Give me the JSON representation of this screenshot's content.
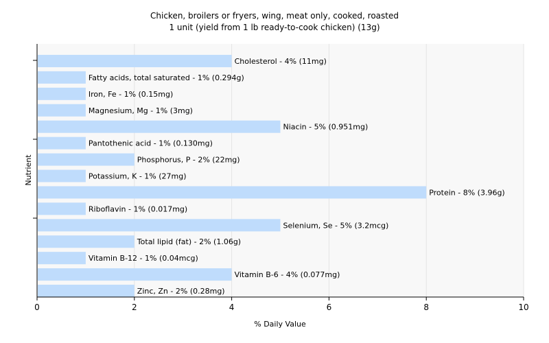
{
  "chart_data": {
    "type": "bar",
    "orientation": "horizontal",
    "title": "Chicken, broilers or fryers, wing, meat only, cooked, roasted",
    "subtitle": "1 unit (yield from 1 lb ready-to-cook chicken) (13g)",
    "xlabel": "% Daily Value",
    "ylabel": "Nutrient",
    "xlim": [
      0,
      10
    ],
    "xticks": [
      "0",
      "2",
      "4",
      "6",
      "8",
      "10"
    ],
    "grid": "vertical",
    "bar_color": "#bfdcfc",
    "categories": [
      "Cholesterol",
      "Fatty acids, total saturated",
      "Iron, Fe",
      "Magnesium, Mg",
      "Niacin",
      "Pantothenic acid",
      "Phosphorus, P",
      "Potassium, K",
      "Protein",
      "Riboflavin",
      "Selenium, Se",
      "Total lipid (fat)",
      "Vitamin B-12",
      "Vitamin B-6",
      "Zinc, Zn"
    ],
    "values": [
      4,
      1,
      1,
      1,
      5,
      1,
      2,
      1,
      8,
      1,
      5,
      2,
      1,
      4,
      2
    ],
    "labels": [
      "Cholesterol - 4% (11mg)",
      "Fatty acids, total saturated - 1% (0.294g)",
      "Iron, Fe - 1% (0.15mg)",
      "Magnesium, Mg - 1% (3mg)",
      "Niacin - 5% (0.951mg)",
      "Pantothenic acid - 1% (0.130mg)",
      "Phosphorus, P - 2% (22mg)",
      "Potassium, K - 1% (27mg)",
      "Protein - 8% (3.96g)",
      "Riboflavin - 1% (0.017mg)",
      "Selenium, Se - 5% (3.2mcg)",
      "Total lipid (fat) - 2% (1.06g)",
      "Vitamin B-12 - 1% (0.04mcg)",
      "Vitamin B-6 - 4% (0.077mg)",
      "Zinc, Zn - 2% (0.28mg)"
    ]
  }
}
